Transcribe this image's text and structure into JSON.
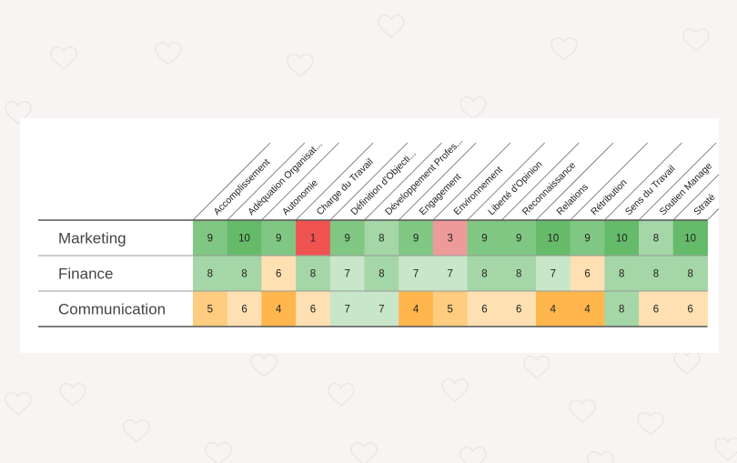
{
  "page": {
    "background": "#f7f5f4",
    "decoration": "heart-pattern"
  },
  "chart_data": {
    "type": "heatmap",
    "columns": [
      "Accomplissement",
      "Adéquation Organisat...",
      "Autonomie",
      "Charge du Travail",
      "Définition d'Objecti...",
      "Développement Profes...",
      "Engagement",
      "Environnement",
      "Liberté d'Opinion",
      "Reconnaissance",
      "Relations",
      "Rétribution",
      "Sens du Travail",
      "Soutien Manage",
      "Straté"
    ],
    "rows": [
      {
        "name": "Marketing",
        "values": [
          9,
          10,
          9,
          1,
          9,
          8,
          9,
          3,
          9,
          9,
          10,
          9,
          10,
          8,
          10
        ]
      },
      {
        "name": "Finance",
        "values": [
          8,
          8,
          6,
          8,
          7,
          8,
          7,
          7,
          8,
          8,
          7,
          6,
          8,
          8,
          8
        ]
      },
      {
        "name": "Communication",
        "values": [
          5,
          6,
          4,
          6,
          7,
          7,
          4,
          5,
          6,
          6,
          4,
          4,
          8,
          6,
          6
        ]
      }
    ],
    "color_scale": {
      "1": "#ef5350",
      "2": "#ef7a78",
      "3": "#ef9a9a",
      "4": "#ffb74d",
      "5": "#ffcc80",
      "6": "#ffe0b2",
      "7": "#c8e6c9",
      "8": "#a5d6a7",
      "9": "#81c784",
      "10": "#66bb6a"
    }
  }
}
